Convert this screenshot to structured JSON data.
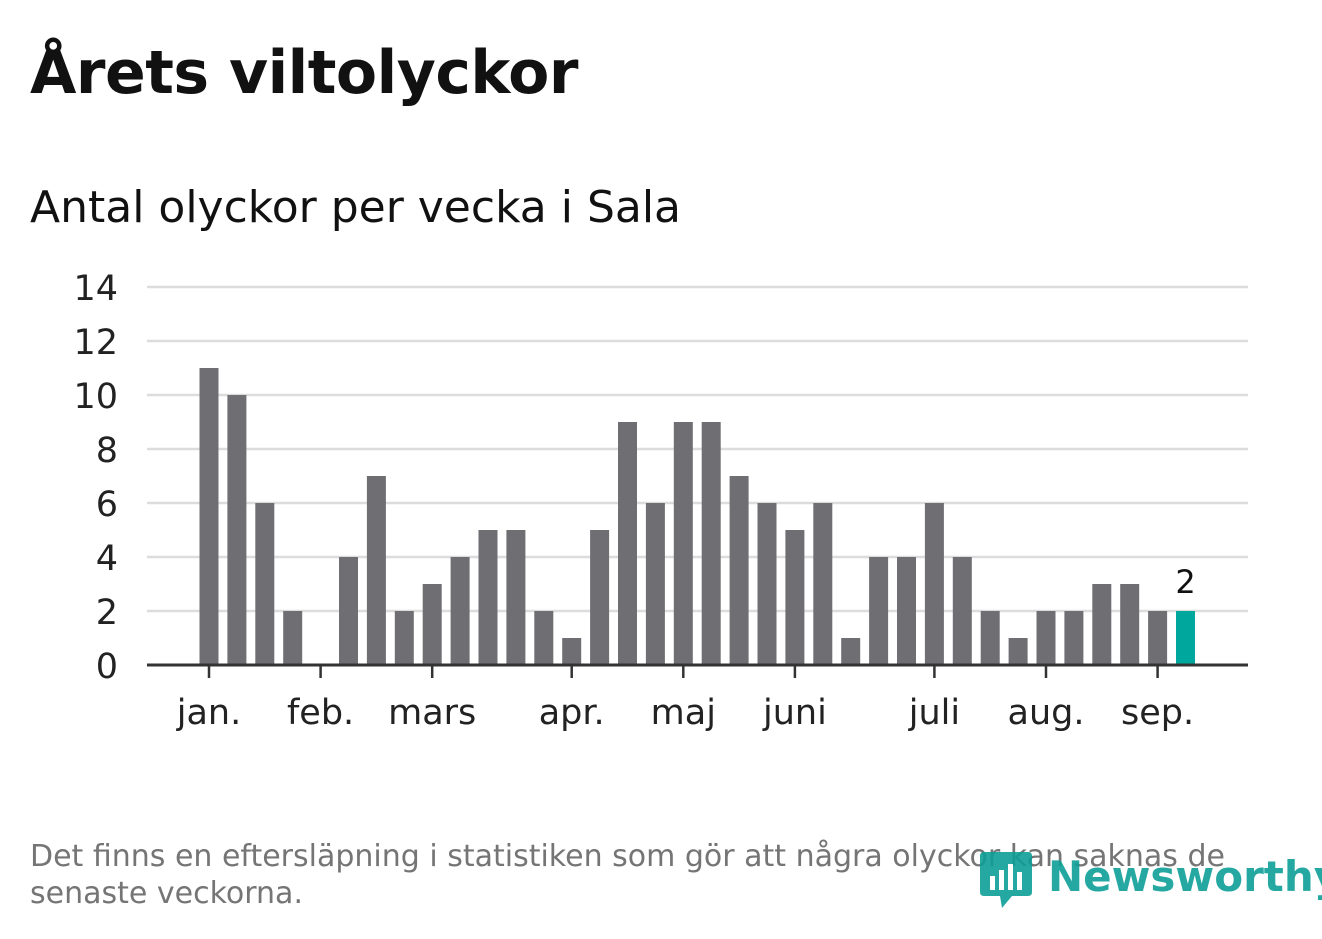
{
  "title": "Årets viltolyckor",
  "subtitle": "Antal olyckor per vecka i Sala",
  "footnote": "Det finns en eftersläpning i statistiken som gör att några olyckor kan saknas de senaste veckorna.",
  "logo": {
    "text": "Newsworthy",
    "icon": "newsworthy-bars-icon"
  },
  "colors": {
    "bar": "#6f6e73",
    "highlight": "#00a79d",
    "grid": "#dcdcdc",
    "axis": "#333333",
    "logo": "#0e9f97"
  },
  "chart_data": {
    "type": "bar",
    "x_unit": "week",
    "values": [
      11,
      10,
      6,
      2,
      0,
      4,
      7,
      2,
      3,
      4,
      5,
      5,
      2,
      1,
      5,
      9,
      6,
      9,
      9,
      7,
      6,
      5,
      6,
      1,
      4,
      4,
      6,
      4,
      2,
      1,
      2,
      2,
      3,
      3,
      2,
      2
    ],
    "highlight_index": 35,
    "highlight_label": "2",
    "ylim": [
      0,
      14
    ],
    "yticks": [
      0,
      2,
      4,
      6,
      8,
      10,
      12,
      14
    ],
    "month_labels": [
      {
        "label": "jan.",
        "week": 1
      },
      {
        "label": "feb.",
        "week": 5
      },
      {
        "label": "mars",
        "week": 9
      },
      {
        "label": "apr.",
        "week": 14
      },
      {
        "label": "maj",
        "week": 18
      },
      {
        "label": "juni",
        "week": 22
      },
      {
        "label": "juli",
        "week": 27
      },
      {
        "label": "aug.",
        "week": 31
      },
      {
        "label": "sep.",
        "week": 35
      }
    ],
    "grid": true,
    "legend": "none"
  }
}
